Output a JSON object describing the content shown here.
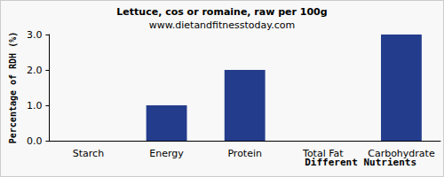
{
  "chart_data": {
    "type": "bar",
    "title": "Lettuce, cos or romaine, raw per 100g",
    "subtitle": "www.dietandfitnesstoday.com",
    "x_label": "Different Nutrients",
    "y_label": "Percentage of RDH (%)",
    "categories": [
      "Starch",
      "Energy",
      "Protein",
      "Total Fat",
      "Carbohydrate"
    ],
    "values": [
      0,
      1,
      2,
      0,
      3
    ],
    "color": "#233d8c",
    "ylim": [
      0,
      3
    ],
    "yticks": [
      {
        "value": 0,
        "label": "0.0"
      },
      {
        "value": 1,
        "label": "1.0"
      },
      {
        "value": 2,
        "label": "2.0"
      },
      {
        "value": 3,
        "label": "3.0"
      }
    ],
    "grid": false
  }
}
